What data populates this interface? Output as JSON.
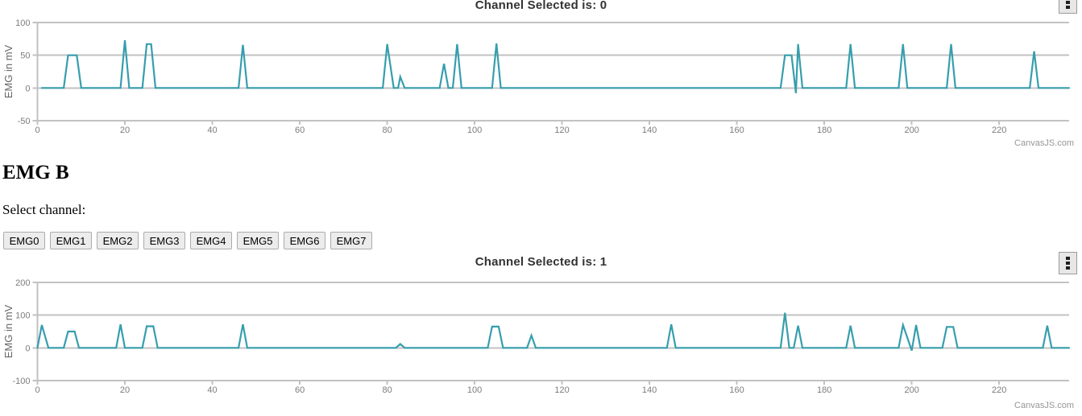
{
  "page": {
    "heading": "EMG B",
    "select_label": "Select channel:",
    "channel_buttons": [
      "EMG0",
      "EMG1",
      "EMG2",
      "EMG3",
      "EMG4",
      "EMG5",
      "EMG6",
      "EMG7"
    ],
    "credit": "CanvasJS.com",
    "icons": {
      "chart_menu": "kebab-menu-icon"
    }
  },
  "chart_data": [
    {
      "type": "line",
      "title": "Channel Selected is: 0",
      "ylabel": "EMG in mV",
      "xlim": [
        0,
        236
      ],
      "ylim": [
        -50,
        100
      ],
      "x_ticks": [
        0,
        20,
        40,
        60,
        80,
        100,
        120,
        140,
        160,
        180,
        200,
        220
      ],
      "y_ticks": [
        100,
        50,
        0,
        -50
      ],
      "grid_on": true,
      "legend": "none",
      "line_color": "#369EAD",
      "grid_color": "#c2c2c2",
      "label_color": "#7c7c7c",
      "axis_title_color": "#666666",
      "title_color": "#333333",
      "points": [
        [
          1,
          0
        ],
        [
          6,
          0
        ],
        [
          7,
          50
        ],
        [
          9,
          50
        ],
        [
          10,
          0
        ],
        [
          19,
          0
        ],
        [
          20,
          73
        ],
        [
          21,
          0
        ],
        [
          24,
          0
        ],
        [
          25,
          67
        ],
        [
          26,
          67
        ],
        [
          27,
          0
        ],
        [
          46,
          0
        ],
        [
          47,
          66
        ],
        [
          48,
          0
        ],
        [
          79,
          0
        ],
        [
          80,
          67
        ],
        [
          81.5,
          0
        ],
        [
          82.5,
          0
        ],
        [
          83,
          17
        ],
        [
          84,
          0
        ],
        [
          92,
          0
        ],
        [
          93,
          37
        ],
        [
          94,
          0
        ],
        [
          95,
          0
        ],
        [
          96,
          67
        ],
        [
          97,
          0
        ],
        [
          104,
          0
        ],
        [
          105,
          68
        ],
        [
          106,
          0
        ],
        [
          170,
          0
        ],
        [
          171,
          50
        ],
        [
          172.5,
          50
        ],
        [
          173.5,
          -8
        ],
        [
          174,
          67
        ],
        [
          175,
          0
        ],
        [
          185,
          0
        ],
        [
          186,
          67
        ],
        [
          187,
          0
        ],
        [
          197,
          0
        ],
        [
          198,
          67
        ],
        [
          199,
          0
        ],
        [
          208,
          0
        ],
        [
          209,
          67
        ],
        [
          210,
          0
        ],
        [
          227,
          0
        ],
        [
          228,
          56
        ],
        [
          229,
          0
        ],
        [
          236,
          0
        ]
      ]
    },
    {
      "type": "line",
      "title": "Channel Selected is: 1",
      "ylabel": "EMG in mV",
      "xlim": [
        0,
        236
      ],
      "ylim": [
        -100,
        200
      ],
      "x_ticks": [
        0,
        20,
        40,
        60,
        80,
        100,
        120,
        140,
        160,
        180,
        200,
        220
      ],
      "y_ticks": [
        200,
        100,
        0,
        -100
      ],
      "grid_on": true,
      "legend": "none",
      "line_color": "#369EAD",
      "grid_color": "#c2c2c2",
      "label_color": "#7c7c7c",
      "axis_title_color": "#666666",
      "title_color": "#333333",
      "points": [
        [
          0,
          0
        ],
        [
          1,
          70
        ],
        [
          2.5,
          0
        ],
        [
          6,
          0
        ],
        [
          7,
          50
        ],
        [
          8.5,
          50
        ],
        [
          9.5,
          0
        ],
        [
          18,
          0
        ],
        [
          19,
          72
        ],
        [
          20,
          0
        ],
        [
          24,
          0
        ],
        [
          25,
          66
        ],
        [
          26.5,
          66
        ],
        [
          27.5,
          0
        ],
        [
          46,
          0
        ],
        [
          47,
          72
        ],
        [
          48,
          0
        ],
        [
          82,
          0
        ],
        [
          83,
          12
        ],
        [
          84,
          0
        ],
        [
          103,
          0
        ],
        [
          104,
          65
        ],
        [
          105.5,
          65
        ],
        [
          106.5,
          0
        ],
        [
          112,
          0
        ],
        [
          113,
          38
        ],
        [
          114,
          0
        ],
        [
          144,
          0
        ],
        [
          145,
          72
        ],
        [
          146,
          0
        ],
        [
          170,
          0
        ],
        [
          171,
          107
        ],
        [
          172,
          0
        ],
        [
          173,
          0
        ],
        [
          174,
          68
        ],
        [
          175,
          0
        ],
        [
          185,
          0
        ],
        [
          186,
          68
        ],
        [
          187,
          0
        ],
        [
          197,
          0
        ],
        [
          198,
          70
        ],
        [
          200,
          -8
        ],
        [
          201,
          70
        ],
        [
          202,
          0
        ],
        [
          207,
          0
        ],
        [
          208,
          64
        ],
        [
          209.5,
          64
        ],
        [
          210.5,
          0
        ],
        [
          230,
          0
        ],
        [
          231,
          68
        ],
        [
          232,
          0
        ],
        [
          236,
          0
        ]
      ]
    }
  ]
}
